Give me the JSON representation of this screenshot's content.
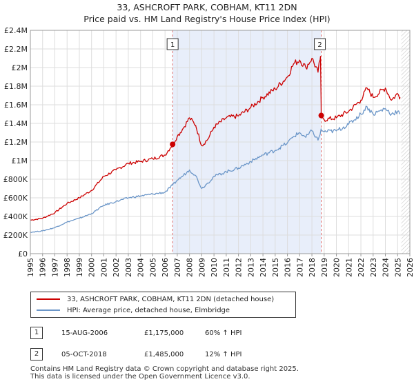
{
  "title_line1": "33, ASHCROFT PARK, COBHAM, KT11 2DN",
  "title_line2": "Price paid vs. HM Land Registry's House Price Index (HPI)",
  "chart_data": {
    "type": "line",
    "xlim": [
      1995,
      2026
    ],
    "ylim": [
      0,
      2400000
    ],
    "x_ticks": [
      "1995",
      "1996",
      "1997",
      "1998",
      "1999",
      "2000",
      "2001",
      "2002",
      "2003",
      "2004",
      "2005",
      "2006",
      "2007",
      "2008",
      "2009",
      "2010",
      "2011",
      "2012",
      "2013",
      "2014",
      "2015",
      "2016",
      "2017",
      "2018",
      "2019",
      "2020",
      "2021",
      "2022",
      "2023",
      "2024",
      "2025",
      "2026"
    ],
    "y_ticks": [
      {
        "value": 0,
        "label": "£0"
      },
      {
        "value": 200000,
        "label": "£200K"
      },
      {
        "value": 400000,
        "label": "£400K"
      },
      {
        "value": 600000,
        "label": "£600K"
      },
      {
        "value": 800000,
        "label": "£800K"
      },
      {
        "value": 1000000,
        "label": "£1M"
      },
      {
        "value": 1200000,
        "label": "£1.2M"
      },
      {
        "value": 1400000,
        "label": "£1.4M"
      },
      {
        "value": 1600000,
        "label": "£1.6M"
      },
      {
        "value": 1800000,
        "label": "£1.8M"
      },
      {
        "value": 2000000,
        "label": "£2M"
      },
      {
        "value": 2200000,
        "label": "£2.2M"
      },
      {
        "value": 2400000,
        "label": "£2.4M"
      }
    ],
    "shaded_span": [
      2006.62,
      2018.76
    ],
    "future_from": 2025.3,
    "series": [
      {
        "name": "33, ASHCROFT PARK, COBHAM, KT11 2DN (detached house)",
        "color": "#cc0000",
        "x": [
          1995,
          1996,
          1997,
          1998,
          1999,
          2000,
          2001,
          2002,
          2003,
          2004,
          2005,
          2006,
          2006.62,
          2007,
          2007.5,
          2008,
          2008.5,
          2009,
          2009.5,
          2010,
          2011,
          2012,
          2013,
          2014,
          2015,
          2016,
          2016.5,
          2017,
          2017.5,
          2018,
          2018.5,
          2018.7,
          2018.76,
          2019,
          2020,
          2021,
          2022,
          2022.5,
          2023,
          2024,
          2024.5,
          2025,
          2025.2
        ],
        "values": [
          360000,
          380000,
          440000,
          540000,
          600000,
          680000,
          830000,
          900000,
          970000,
          990000,
          1020000,
          1060000,
          1175000,
          1260000,
          1350000,
          1460000,
          1380000,
          1160000,
          1230000,
          1360000,
          1460000,
          1480000,
          1570000,
          1680000,
          1770000,
          1900000,
          2040000,
          2080000,
          2000000,
          2100000,
          1950000,
          2120000,
          1485000,
          1440000,
          1460000,
          1530000,
          1650000,
          1780000,
          1680000,
          1780000,
          1650000,
          1720000,
          1680000
        ]
      },
      {
        "name": "HPI: Average price, detached house, Elmbridge",
        "color": "#6b96c8",
        "x": [
          1995,
          1996,
          1997,
          1998,
          1999,
          2000,
          2001,
          2002,
          2003,
          2004,
          2005,
          2006,
          2006.62,
          2007,
          2007.5,
          2008,
          2008.5,
          2009,
          2009.5,
          2010,
          2011,
          2012,
          2013,
          2014,
          2015,
          2016,
          2016.5,
          2017,
          2017.5,
          2018,
          2018.5,
          2018.76,
          2019,
          2020,
          2021,
          2022,
          2022.5,
          2023,
          2024,
          2024.5,
          2025,
          2025.2
        ],
        "values": [
          230000,
          245000,
          280000,
          340000,
          380000,
          430000,
          520000,
          560000,
          600000,
          620000,
          640000,
          660000,
          735000,
          790000,
          840000,
          900000,
          840000,
          700000,
          760000,
          830000,
          880000,
          920000,
          990000,
          1060000,
          1110000,
          1190000,
          1260000,
          1300000,
          1250000,
          1320000,
          1220000,
          1330000,
          1310000,
          1320000,
          1390000,
          1500000,
          1580000,
          1500000,
          1560000,
          1500000,
          1530000,
          1500000
        ]
      }
    ],
    "annotations": [
      {
        "label": "1",
        "x": 2006.62,
        "value": 1175000
      },
      {
        "label": "2",
        "x": 2018.76,
        "value": 1485000
      }
    ]
  },
  "legend": {
    "items": [
      {
        "label": "33, ASHCROFT PARK, COBHAM, KT11 2DN (detached house)",
        "color": "#cc0000"
      },
      {
        "label": "HPI: Average price, detached house, Elmbridge",
        "color": "#6b96c8"
      }
    ]
  },
  "transactions": [
    {
      "num": "1",
      "date": "15-AUG-2006",
      "price": "£1,175,000",
      "hpi": "60% ↑ HPI"
    },
    {
      "num": "2",
      "date": "05-OCT-2018",
      "price": "£1,485,000",
      "hpi": "12% ↑ HPI"
    }
  ],
  "footer": {
    "line1": "Contains HM Land Registry data © Crown copyright and database right 2025.",
    "line2": "This data is licensed under the Open Government Licence v3.0."
  }
}
